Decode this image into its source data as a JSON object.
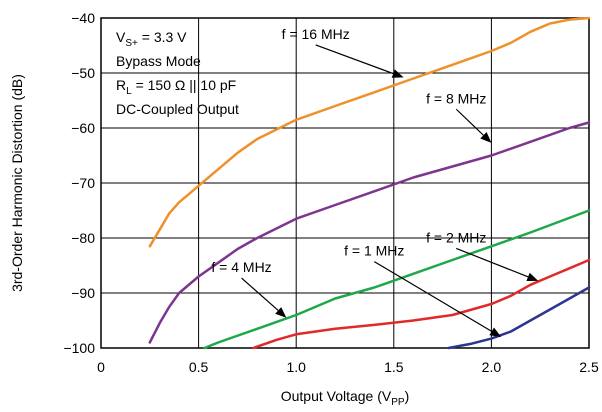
{
  "chart_data": {
    "type": "line",
    "xlabel": "Output Voltage (V",
    "xlabel_sub": "PP",
    "xlabel_close": ")",
    "ylabel": "3rd-Order Harmonic Distortion (dB)",
    "xlim": [
      0,
      2.5
    ],
    "ylim": [
      -100,
      -40
    ],
    "xticks": [
      0,
      0.5,
      1.0,
      1.5,
      2.0,
      2.5
    ],
    "xtick_labels": [
      "0",
      "0.5",
      "1.0",
      "1.5",
      "2.0",
      "2.5"
    ],
    "yticks": [
      -40,
      -50,
      -60,
      -70,
      -80,
      -90,
      -100
    ],
    "ytick_labels": [
      "−40",
      "−50",
      "−60",
      "−70",
      "−80",
      "−90",
      "−100"
    ],
    "grid": true,
    "conditions": {
      "line1_main": "V",
      "line1_sub": "S+",
      "line1_rest": " = 3.3 V",
      "line2": "Bypass Mode",
      "line3_main": "R",
      "line3_sub": "L",
      "line3_rest": " = 150 Ω || 10 pF",
      "line4": "DC-Coupled Output"
    },
    "series": [
      {
        "name": "f = 16 MHz",
        "color": "#f0902a",
        "x": [
          0.25,
          0.3,
          0.35,
          0.4,
          0.5,
          0.6,
          0.7,
          0.8,
          1.0,
          1.2,
          1.4,
          1.6,
          1.8,
          2.0,
          2.1,
          2.2,
          2.3,
          2.4,
          2.5
        ],
        "y": [
          -81.5,
          -78.5,
          -75.5,
          -73.5,
          -70.5,
          -67.5,
          -64.5,
          -62,
          -58.5,
          -56,
          -53.5,
          -51,
          -48.5,
          -46,
          -44.5,
          -42.5,
          -41,
          -40.3,
          -40
        ]
      },
      {
        "name": "f = 8 MHz",
        "color": "#7d3590",
        "x": [
          0.25,
          0.3,
          0.35,
          0.4,
          0.5,
          0.6,
          0.7,
          0.8,
          1.0,
          1.2,
          1.4,
          1.6,
          1.8,
          2.0,
          2.2,
          2.4,
          2.5
        ],
        "y": [
          -99,
          -95.5,
          -92.5,
          -90,
          -87,
          -84.5,
          -82,
          -80,
          -76.5,
          -74,
          -71.5,
          -69,
          -67,
          -65,
          -62.5,
          -60,
          -59
        ]
      },
      {
        "name": "f = 4 MHz",
        "color": "#1ea84a",
        "x": [
          0.53,
          0.6,
          0.8,
          1.0,
          1.2,
          1.4,
          1.6,
          1.8,
          2.0,
          2.2,
          2.5
        ],
        "y": [
          -100,
          -99,
          -96.5,
          -94,
          -91,
          -89,
          -86.5,
          -84,
          -81.5,
          -79,
          -75
        ]
      },
      {
        "name": "f = 2 MHz",
        "color": "#e02a2a",
        "x": [
          0.78,
          0.9,
          1.0,
          1.2,
          1.4,
          1.6,
          1.8,
          1.9,
          2.0,
          2.1,
          2.2,
          2.3,
          2.4,
          2.5
        ],
        "y": [
          -100,
          -98.5,
          -97.5,
          -96.5,
          -95.8,
          -95,
          -94,
          -93,
          -92,
          -90.5,
          -88.5,
          -87,
          -85.5,
          -84
        ]
      },
      {
        "name": "f = 1 MHz",
        "color": "#2c3590",
        "x": [
          1.78,
          1.9,
          2.0,
          2.1,
          2.2,
          2.3,
          2.4,
          2.5
        ],
        "y": [
          -100,
          -99.2,
          -98.3,
          -97,
          -95,
          -93,
          -91,
          -89
        ]
      }
    ],
    "annotations": [
      {
        "text": "f = 16 MHz",
        "series": 0,
        "label_x": 1.1,
        "label_y": -43.8,
        "tip_x": 1.55,
        "tip_y": -50.8
      },
      {
        "text": "f = 8 MHz",
        "series": 1,
        "label_x": 1.82,
        "label_y": -55.5,
        "tip_x": 2.0,
        "tip_y": -62.7
      },
      {
        "text": "f = 4 MHz",
        "series": 2,
        "label_x": 0.72,
        "label_y": -86.2,
        "tip_x": 0.95,
        "tip_y": -94.5
      },
      {
        "text": "f = 2 MHz",
        "series": 3,
        "label_x": 1.82,
        "label_y": -80.8,
        "tip_x": 2.24,
        "tip_y": -87.8
      },
      {
        "text": "f = 1 MHz",
        "series": 4,
        "label_x": 1.4,
        "label_y": -83.2,
        "tip_x": 2.05,
        "tip_y": -98
      }
    ]
  }
}
